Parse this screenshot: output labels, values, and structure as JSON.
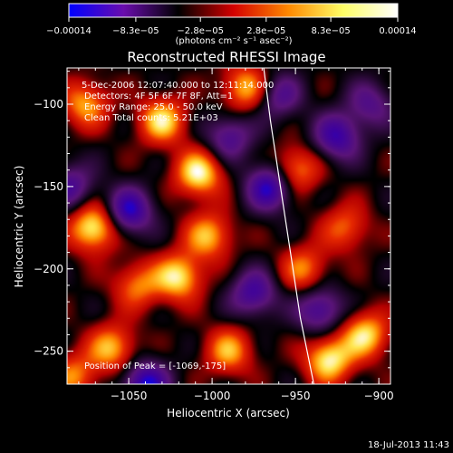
{
  "chart_data": {
    "type": "heatmap",
    "title": "Reconstructed RHESSI Image",
    "xlabel": "Heliocentric X (arcsec)",
    "ylabel": "Heliocentric Y (arcsec)",
    "xlim": [
      -1087,
      -893
    ],
    "ylim": [
      -270,
      -78
    ],
    "x_ticks": [
      -1050,
      -1000,
      -950,
      -900
    ],
    "x_tick_labels": [
      "−1050",
      "−1000",
      "−950",
      "−900"
    ],
    "y_ticks": [
      -100,
      -150,
      -200,
      -250
    ],
    "y_tick_labels": [
      "−100",
      "−150",
      "−200",
      "−250"
    ],
    "colorbar": {
      "ticks": [
        -0.00014,
        -8.3e-05,
        -2.8e-05,
        2.8e-05,
        8.3e-05,
        0.00014
      ],
      "tick_labels": [
        "−0.00014",
        "−8.3e−05",
        "−2.8e−05",
        "2.8e−05",
        "8.3e−05",
        "0.00014"
      ],
      "units": "(photons cm⁻² s⁻¹ asec⁻²)",
      "min": -0.00014,
      "max": 0.00014,
      "colors": [
        "#0000ff",
        "#6a0dad",
        "#000000",
        "#d40000",
        "#ff8800",
        "#ffff66",
        "#ffffff"
      ]
    },
    "annotations": [
      " 5-Dec-2006 12:07:40.000 to 12:11:14.000",
      "Detectors: 4F 5F 6F 7F 8F, Att=1",
      "Energy Range: 25.0 - 50.0 keV",
      "Clean     Total counts: 5.21E+03"
    ],
    "peak_label": "Position of Peak = [-1069,-175]",
    "peak": [
      -1069,
      -175
    ],
    "solar_limb": [
      [
        -969,
        -78
      ],
      [
        -965,
        -110
      ],
      [
        -959,
        -150
      ],
      [
        -953,
        -190
      ],
      [
        -947,
        -230
      ],
      [
        -939,
        -270
      ]
    ],
    "image_sources": [
      {
        "x": -1071,
        "y": -175,
        "v": 1.0
      },
      {
        "x": -1030,
        "y": -110,
        "v": 0.85
      },
      {
        "x": -1008,
        "y": -142,
        "v": 0.95
      },
      {
        "x": -1076,
        "y": -100,
        "v": 0.7
      },
      {
        "x": -1060,
        "y": -248,
        "v": 0.75
      },
      {
        "x": -1020,
        "y": -205,
        "v": 0.9
      },
      {
        "x": -1002,
        "y": -180,
        "v": 0.75
      },
      {
        "x": -990,
        "y": -250,
        "v": 0.7
      },
      {
        "x": -930,
        "y": -255,
        "v": 0.95
      },
      {
        "x": -908,
        "y": -240,
        "v": 0.85
      },
      {
        "x": -945,
        "y": -200,
        "v": 0.6
      },
      {
        "x": -950,
        "y": -140,
        "v": 0.7
      },
      {
        "x": -980,
        "y": -90,
        "v": 0.75
      },
      {
        "x": -1045,
        "y": -210,
        "v": 0.6
      },
      {
        "x": -920,
        "y": -175,
        "v": 0.55
      },
      {
        "x": -1083,
        "y": -265,
        "v": 0.6
      },
      {
        "x": -1050,
        "y": -165,
        "v": -0.85
      },
      {
        "x": -965,
        "y": -150,
        "v": -0.9
      },
      {
        "x": -925,
        "y": -120,
        "v": -0.75
      },
      {
        "x": -1040,
        "y": -270,
        "v": -0.9
      },
      {
        "x": -935,
        "y": -225,
        "v": -0.7
      },
      {
        "x": -990,
        "y": -120,
        "v": -0.6
      },
      {
        "x": -1085,
        "y": -150,
        "v": -0.6
      },
      {
        "x": -975,
        "y": -215,
        "v": -0.7
      },
      {
        "x": -960,
        "y": -95,
        "v": -0.55
      },
      {
        "x": -905,
        "y": -100,
        "v": -0.5
      }
    ]
  },
  "footer": {
    "timestamp": "18-Jul-2013 11:43"
  }
}
